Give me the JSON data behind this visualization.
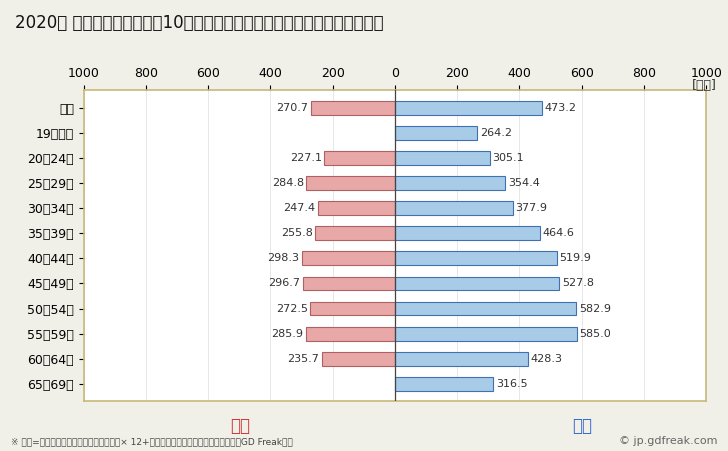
{
  "title": "2020年 民間企業（従業者数10人以上）フルタイム労働者の男女別平均年収",
  "subtitle": "※ 年収=」きまって支給する現金給与額『× 12+』年間賞与その他特別給与額『としてGD Freak推計",
  "watermark": "© jp.gdfreak.com",
  "ylabel_unit": "[万円]",
  "categories": [
    "全体",
    "19歳以下",
    "20～24歳",
    "25～29歳",
    "30～34歳",
    "35～39歳",
    "40～44歳",
    "45～49歳",
    "50～54歳",
    "55～59歳",
    "60～64歳",
    "65～69歳"
  ],
  "female_values": [
    270.7,
    0,
    227.1,
    284.8,
    247.4,
    255.8,
    298.3,
    296.7,
    272.5,
    285.9,
    235.7,
    0
  ],
  "male_values": [
    473.2,
    264.2,
    305.1,
    354.4,
    377.9,
    464.6,
    519.9,
    527.8,
    582.9,
    585.0,
    428.3,
    316.5
  ],
  "female_color": "#e8a8a8",
  "male_color": "#a8cce8",
  "female_border": "#b06060",
  "male_border": "#4070b0",
  "female_label": "女性",
  "male_label": "男性",
  "female_label_color": "#cc3333",
  "male_label_color": "#3366cc",
  "xlim": [
    -1000,
    1000
  ],
  "xticks": [
    -1000,
    -800,
    -600,
    -400,
    -200,
    0,
    200,
    400,
    600,
    800,
    1000
  ],
  "xtick_labels": [
    "1000",
    "800",
    "600",
    "400",
    "200",
    "0",
    "200",
    "400",
    "600",
    "800",
    "1000"
  ],
  "background_color": "#f0f0e8",
  "plot_background": "#ffffff",
  "border_color": "#c8b878",
  "title_fontsize": 12,
  "label_fontsize": 9,
  "bar_height": 0.55,
  "subtitle_text": "※ 年収=「きまって支給する現金給与額」× 12+「年間賞与その他特別給与額」としてGD Freak推計"
}
